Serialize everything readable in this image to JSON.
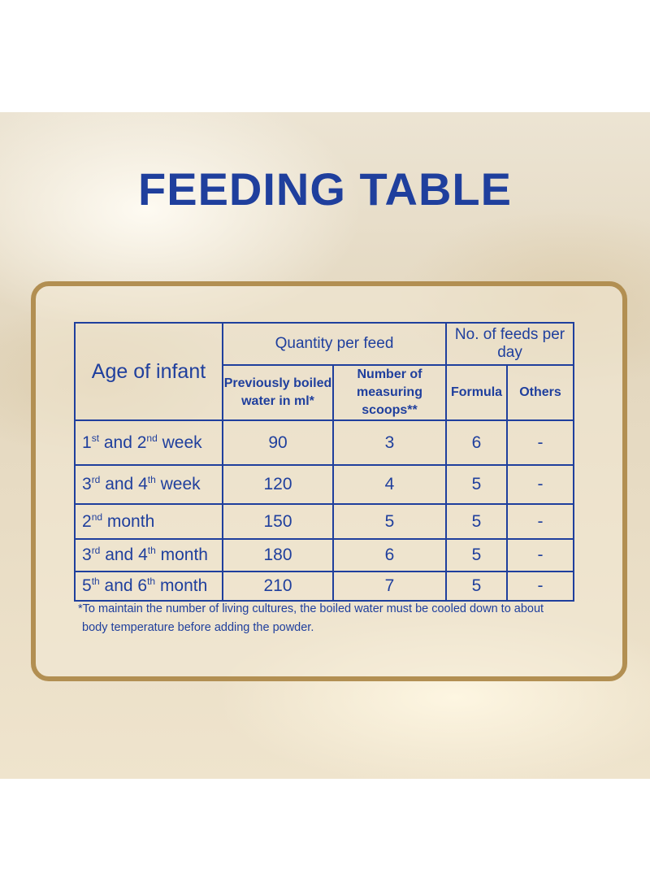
{
  "title": "FEEDING TABLE",
  "table": {
    "headers": {
      "age": "Age of infant",
      "quantity_group": "Quantity per feed",
      "water": "Previously boiled water in ml*",
      "water_line1": "Previously boiled",
      "water_line2": "water in ml*",
      "scoops_line1": "Number of",
      "scoops_line2": "measuring scoops**",
      "feeds_group": "No. of feeds per day",
      "formula": "Formula",
      "others": "Others"
    },
    "rows": [
      {
        "age_a": "1",
        "sup_a": "st",
        "mid": " and 2",
        "sup_b": "nd",
        "tail": " week",
        "water": "90",
        "scoops": "3",
        "formula": "6",
        "others": "-"
      },
      {
        "age_a": "3",
        "sup_a": "rd",
        "mid": " and 4",
        "sup_b": "th",
        "tail": " week",
        "water": "120",
        "scoops": "4",
        "formula": "5",
        "others": "-"
      },
      {
        "age_a": "2",
        "sup_a": "nd",
        "mid": "",
        "sup_b": "",
        "tail": " month",
        "water": "150",
        "scoops": "5",
        "formula": "5",
        "others": "-"
      },
      {
        "age_a": "3",
        "sup_a": "rd",
        "mid": " and 4",
        "sup_b": "th",
        "tail": " month",
        "water": "180",
        "scoops": "6",
        "formula": "5",
        "others": "-"
      },
      {
        "age_a": "5",
        "sup_a": "th",
        "mid": " and 6",
        "sup_b": "th",
        "tail": " month",
        "water": "210",
        "scoops": "7",
        "formula": "5",
        "others": "-"
      }
    ]
  },
  "footnote": {
    "line1": "*To maintain the number of living cultures, the boiled water must be cooled down to about",
    "line2": "body temperature  before adding the powder."
  },
  "colors": {
    "text_blue": "#1f3f9d",
    "frame_gold": "#b28f52"
  }
}
